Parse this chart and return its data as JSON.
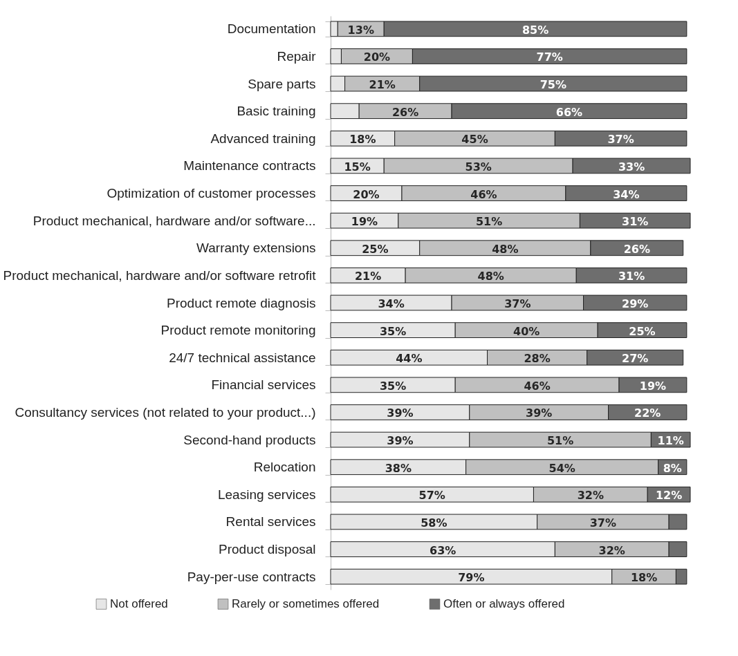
{
  "chart_data": {
    "type": "bar",
    "orientation": "horizontal",
    "stacked": true,
    "legend": "bottom",
    "categories": [
      "Documentation",
      "Repair",
      "Spare parts",
      "Basic training",
      "Advanced training",
      "Maintenance contracts",
      "Optimization of customer processes",
      "Product mechanical, hardware and/or software...",
      "Warranty extensions",
      "Product mechanical, hardware and/or software retrofit",
      "Product remote diagnosis",
      "Product remote monitoring",
      "24/7 technical assistance",
      "Financial services",
      "Consultancy services (not related to your product...)",
      "Second-hand products",
      "Relocation",
      "Leasing services",
      "Rental services",
      "Product disposal",
      "Pay-per-use contracts"
    ],
    "series": [
      {
        "name": "Not offered",
        "color": "#e6e6e6",
        "values": [
          2,
          3,
          4,
          8,
          18,
          15,
          20,
          19,
          25,
          21,
          34,
          35,
          44,
          35,
          39,
          39,
          38,
          57,
          58,
          63,
          79
        ],
        "value_labels": [
          null,
          null,
          null,
          null,
          "18%",
          "15%",
          "20%",
          "19%",
          "25%",
          "21%",
          "34%",
          "35%",
          "44%",
          "35%",
          "39%",
          "39%",
          "38%",
          "57%",
          "58%",
          "63%",
          "79%"
        ]
      },
      {
        "name": "Rarely or sometimes offered",
        "color": "#c0c0c0",
        "values": [
          13,
          20,
          21,
          26,
          45,
          53,
          46,
          51,
          48,
          48,
          37,
          40,
          28,
          46,
          39,
          51,
          54,
          32,
          37,
          32,
          18
        ],
        "value_labels": [
          "13%",
          "20%",
          "21%",
          "26%",
          "45%",
          "53%",
          "46%",
          "51%",
          "48%",
          "48%",
          "37%",
          "40%",
          "28%",
          "46%",
          "39%",
          "51%",
          "54%",
          "32%",
          "37%",
          "32%",
          "18%"
        ]
      },
      {
        "name": "Often or always offered",
        "color": "#6e6e6e",
        "values": [
          85,
          77,
          75,
          66,
          37,
          33,
          34,
          31,
          26,
          31,
          29,
          25,
          27,
          19,
          22,
          11,
          8,
          12,
          5,
          5,
          3
        ],
        "value_labels": [
          "85%",
          "77%",
          "75%",
          "66%",
          "37%",
          "33%",
          "34%",
          "31%",
          "26%",
          "31%",
          "29%",
          "25%",
          "27%",
          "19%",
          "22%",
          "11%",
          "8%",
          "12%",
          null,
          null,
          null
        ]
      }
    ]
  }
}
